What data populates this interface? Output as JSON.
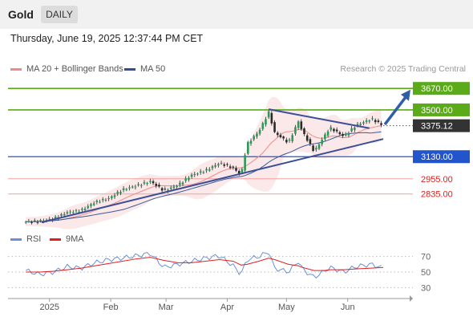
{
  "header": {
    "title": "Gold",
    "timeframe": "DAILY"
  },
  "timestamp": "Thursday, June 19, 2025 12:37:44 PM CET",
  "legend_top": [
    {
      "label": "MA 20 + Bollinger Bands",
      "color": "#f08a8a"
    },
    {
      "label": "MA 50",
      "color": "#2f4f8f"
    }
  ],
  "credit": "Research © 2025 Trading Central",
  "legend_bottom": [
    {
      "label": "RSI",
      "color": "#6a8fd8"
    },
    {
      "label": "9MA",
      "color": "#e02020"
    }
  ],
  "colors": {
    "green": "#5aaa1a",
    "blue": "#2255cc",
    "red": "#f06060",
    "current": "#333333",
    "arrow": "#2f5fa8"
  },
  "chart_data": {
    "type": "line",
    "price_axis": {
      "ylim": [
        2560,
        3760
      ]
    },
    "levels": [
      {
        "value": 3670,
        "label": "3670.00",
        "kind": "target",
        "color": "#5aaa1a"
      },
      {
        "value": 3500,
        "label": "3500.00",
        "kind": "resistance",
        "color": "#5aaa1a"
      },
      {
        "value": 3375.12,
        "label": "3375.12",
        "kind": "current",
        "color": "#333333"
      },
      {
        "value": 3130,
        "label": "3130.00",
        "kind": "pivot",
        "color": "#2255cc"
      },
      {
        "value": 2955,
        "label": "2955.00",
        "kind": "support",
        "color": "#f06060"
      },
      {
        "value": 2835,
        "label": "2835.00",
        "kind": "support",
        "color": "#f06060"
      }
    ],
    "price_series": [
      {
        "x": "2024-12-20",
        "y": 2615
      },
      {
        "x": "2024-12-27",
        "y": 2620
      },
      {
        "x": "2025-01-03",
        "y": 2640
      },
      {
        "x": "2025-01-10",
        "y": 2690
      },
      {
        "x": "2025-01-17",
        "y": 2705
      },
      {
        "x": "2025-01-24",
        "y": 2770
      },
      {
        "x": "2025-01-31",
        "y": 2800
      },
      {
        "x": "2025-02-07",
        "y": 2870
      },
      {
        "x": "2025-02-14",
        "y": 2900
      },
      {
        "x": "2025-02-21",
        "y": 2935
      },
      {
        "x": "2025-02-28",
        "y": 2860
      },
      {
        "x": "2025-03-07",
        "y": 2905
      },
      {
        "x": "2025-03-14",
        "y": 2985
      },
      {
        "x": "2025-03-21",
        "y": 3020
      },
      {
        "x": "2025-03-28",
        "y": 3080
      },
      {
        "x": "2025-04-04",
        "y": 3040
      },
      {
        "x": "2025-04-08",
        "y": 2985
      },
      {
        "x": "2025-04-11",
        "y": 3230
      },
      {
        "x": "2025-04-17",
        "y": 3330
      },
      {
        "x": "2025-04-22",
        "y": 3480
      },
      {
        "x": "2025-04-25",
        "y": 3320
      },
      {
        "x": "2025-05-02",
        "y": 3240
      },
      {
        "x": "2025-05-07",
        "y": 3410
      },
      {
        "x": "2025-05-09",
        "y": 3330
      },
      {
        "x": "2025-05-15",
        "y": 3170
      },
      {
        "x": "2025-05-20",
        "y": 3290
      },
      {
        "x": "2025-05-23",
        "y": 3360
      },
      {
        "x": "2025-05-30",
        "y": 3290
      },
      {
        "x": "2025-06-05",
        "y": 3375
      },
      {
        "x": "2025-06-13",
        "y": 3430
      },
      {
        "x": "2025-06-19",
        "y": 3375
      }
    ],
    "rsi_axis": {
      "ylim": [
        20,
        80
      ],
      "ticks": [
        {
          "value": 70,
          "label": "70"
        },
        {
          "value": 50,
          "label": "50"
        },
        {
          "value": 30,
          "label": "30"
        }
      ]
    },
    "rsi": [
      52,
      47,
      50,
      57,
      55,
      62,
      66,
      68,
      71,
      74,
      56,
      60,
      64,
      68,
      71,
      58,
      47,
      66,
      70,
      76,
      55,
      50,
      64,
      54,
      43,
      51,
      56,
      50,
      57,
      60,
      55
    ],
    "rsi_9ma": [
      50,
      50,
      51,
      53,
      55,
      58,
      61,
      64,
      67,
      69,
      65,
      62,
      62,
      64,
      66,
      64,
      59,
      60,
      64,
      68,
      66,
      60,
      58,
      56,
      52,
      52,
      53,
      53,
      54,
      55,
      56
    ],
    "x_labels": [
      {
        "x": "2025-01-01",
        "label": "2025"
      },
      {
        "x": "2025-02-01",
        "label": "Feb"
      },
      {
        "x": "2025-03-01",
        "label": "Mar"
      },
      {
        "x": "2025-04-01",
        "label": "Apr"
      },
      {
        "x": "2025-05-01",
        "label": "May"
      },
      {
        "x": "2025-06-01",
        "label": "Jun"
      }
    ]
  }
}
